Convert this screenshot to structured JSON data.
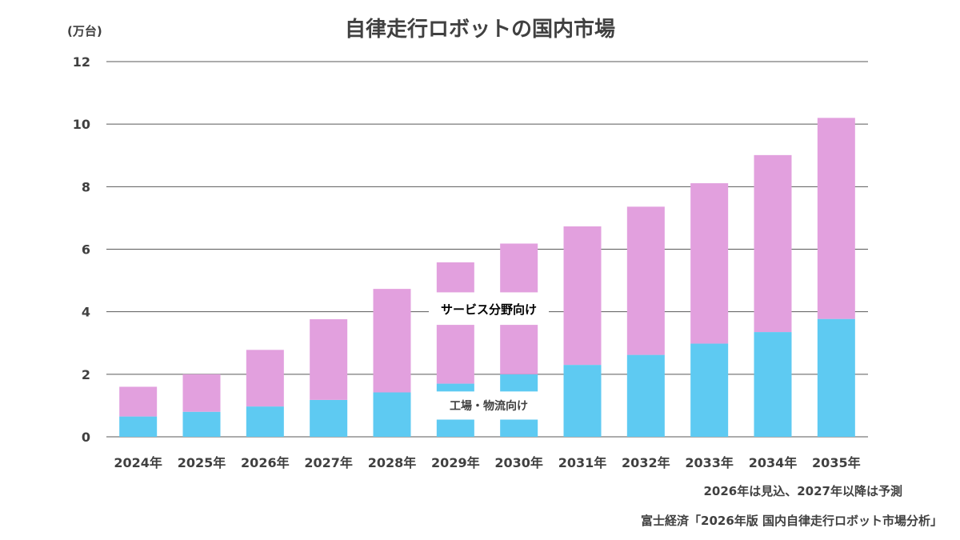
{
  "chart_data": {
    "type": "bar",
    "stacked": true,
    "title": "自律走行ロボットの国内市場",
    "unit_label": "(万台)",
    "ylim": [
      0,
      12
    ],
    "yticks": [
      0,
      2,
      4,
      6,
      8,
      10,
      12
    ],
    "grid": true,
    "categories": [
      "2024年",
      "2025年",
      "2026年",
      "2027年",
      "2028年",
      "2029年",
      "2030年",
      "2031年",
      "2032年",
      "2033年",
      "2034年",
      "2035年"
    ],
    "series": [
      {
        "name": "工場・物流向け",
        "color": "#5ECAF2",
        "values": [
          0.65,
          0.8,
          0.97,
          1.18,
          1.42,
          1.7,
          2.0,
          2.3,
          2.62,
          2.98,
          3.35,
          3.77
        ]
      },
      {
        "name": "サービス分野向け",
        "color": "#E2A0DE",
        "values": [
          0.95,
          1.2,
          1.81,
          2.58,
          3.31,
          3.88,
          4.18,
          4.43,
          4.74,
          5.13,
          5.66,
          6.43
        ]
      }
    ],
    "note": "2026年は見込、2027年以降は予測",
    "source": "富士経済「2026年版 国内自律走行ロボット市場分析」"
  }
}
